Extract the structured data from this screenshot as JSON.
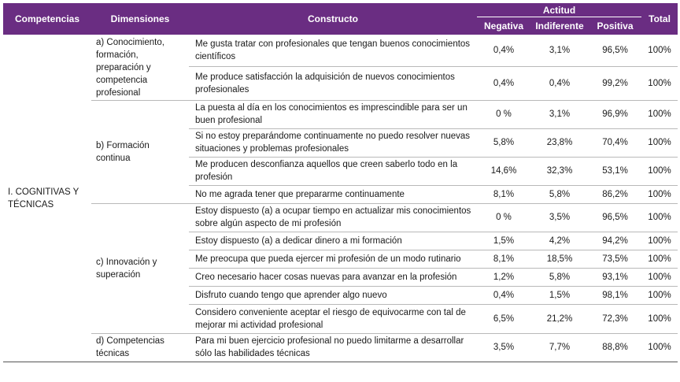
{
  "headers": {
    "competencias": "Competencias",
    "dimensiones": "Dimensiones",
    "constructo": "Constructo",
    "actitud": "Actitud",
    "negativa": "Negativa",
    "indiferente": "Indiferente",
    "positiva": "Positiva",
    "total": "Total"
  },
  "competencia": "I.  COGNITIVAS Y TÉCNICAS",
  "dimensions": [
    "a) Conocimiento, formación, preparación y competencia profesional",
    "b) Formación continua",
    "c) Innovación y superación",
    "d) Competencias técnicas"
  ],
  "rows": [
    {
      "text": "Me gusta tratar con profesionales que tengan buenos conocimientos científicos",
      "neg": "0,4%",
      "ind": "3,1%",
      "pos": "96,5%",
      "total": "100%"
    },
    {
      "text": "Me produce satisfacción la adquisición de nuevos conocimientos profesionales",
      "neg": "0,4%",
      "ind": "0,4%",
      "pos": "99,2%",
      "total": "100%"
    },
    {
      "text": "La puesta al día en los conocimientos es imprescindible para ser un buen profesional",
      "neg": "0 %",
      "ind": "3,1%",
      "pos": "96,9%",
      "total": "100%"
    },
    {
      "text": "Si no estoy preparándome continuamente no puedo resolver nuevas situaciones y problemas profesionales",
      "neg": "5,8%",
      "ind": "23,8%",
      "pos": "70,4%",
      "total": "100%"
    },
    {
      "text": "Me producen desconfianza aquellos que creen saberlo todo en la profesión",
      "neg": "14,6%",
      "ind": "32,3%",
      "pos": "53,1%",
      "total": "100%"
    },
    {
      "text": "No me agrada tener que prepararme continuamente",
      "neg": "8,1%",
      "ind": "5,8%",
      "pos": "86,2%",
      "total": "100%"
    },
    {
      "text": "Estoy dispuesto (a) a ocupar tiempo en actualizar mis conocimientos sobre algún aspecto de mi profesión",
      "neg": "0 %",
      "ind": "3,5%",
      "pos": "96,5%",
      "total": "100%"
    },
    {
      "text": "Estoy dispuesto (a) a dedicar dinero  a mi formación",
      "neg": "1,5%",
      "ind": "4,2%",
      "pos": "94,2%",
      "total": "100%"
    },
    {
      "text": "Me preocupa que pueda ejercer mi profesión de un modo rutinario",
      "neg": "8,1%",
      "ind": "18,5%",
      "pos": "73,5%",
      "total": "100%"
    },
    {
      "text": "Creo necesario hacer cosas nuevas para avanzar en la profesión",
      "neg": "1,2%",
      "ind": "5,8%",
      "pos": "93,1%",
      "total": "100%"
    },
    {
      "text": "Disfruto cuando tengo que aprender algo nuevo",
      "neg": "0,4%",
      "ind": "1,5%",
      "pos": "98,1%",
      "total": "100%"
    },
    {
      "text": "Considero conveniente aceptar el riesgo de equivocarme con tal de mejorar mi actividad profesional",
      "neg": "6,5%",
      "ind": "21,2%",
      "pos": "72,3%",
      "total": "100%"
    },
    {
      "text": "Para mi buen ejercicio profesional no puedo limitarme a desarrollar sólo las habilidades técnicas",
      "neg": "3,5%",
      "ind": "7,7%",
      "pos": "88,8%",
      "total": "100%"
    }
  ]
}
